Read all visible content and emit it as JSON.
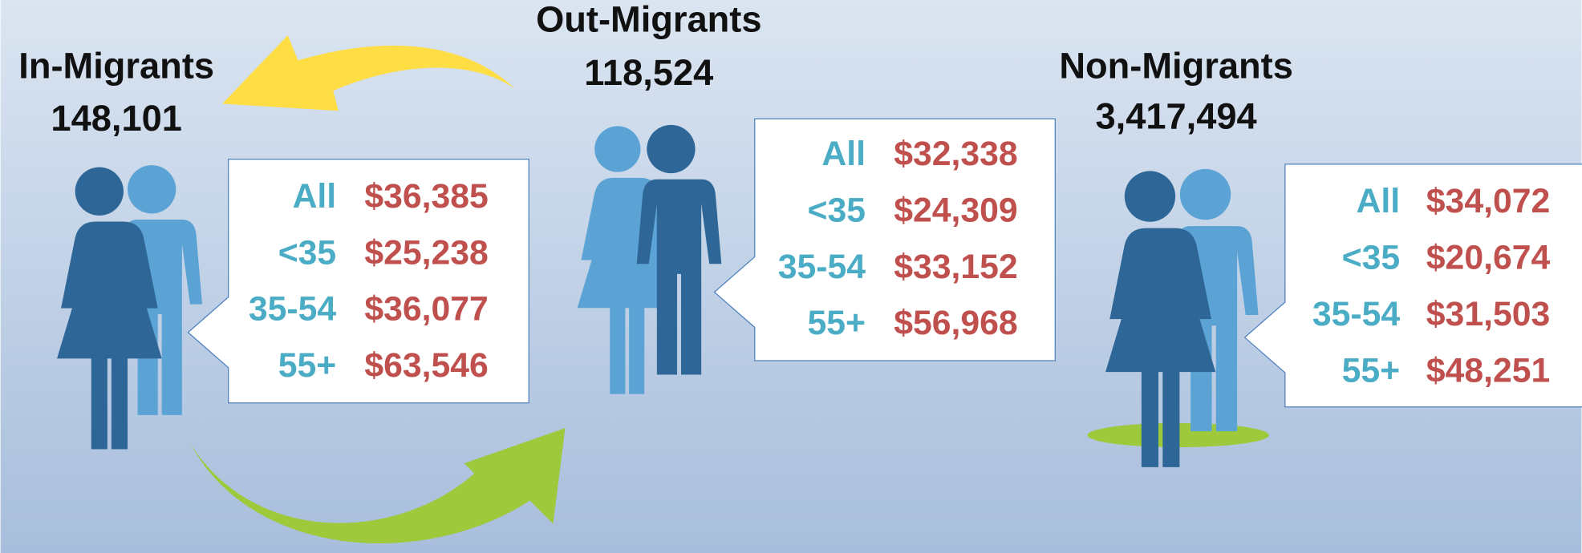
{
  "groups": [
    {
      "title": "In-Migrants",
      "count": "148,101",
      "rows": [
        {
          "label": "All",
          "value": "$36,385"
        },
        {
          "label": "<35",
          "value": "$25,238"
        },
        {
          "label": "35-54",
          "value": "$36,077"
        },
        {
          "label": "55+",
          "value": "$63,546"
        }
      ]
    },
    {
      "title": "Out-Migrants",
      "count": "118,524",
      "rows": [
        {
          "label": "All",
          "value": "$32,338"
        },
        {
          "label": "<35",
          "value": "$24,309"
        },
        {
          "label": "35-54",
          "value": "$33,152"
        },
        {
          "label": "55+",
          "value": "$56,968"
        }
      ]
    },
    {
      "title": "Non-Migrants",
      "count": "3,417,494",
      "rows": [
        {
          "label": "All",
          "value": "$34,072"
        },
        {
          "label": "<35",
          "value": "$20,674"
        },
        {
          "label": "35-54",
          "value": "$31,503"
        },
        {
          "label": "55+",
          "value": "$48,251"
        }
      ]
    }
  ]
}
